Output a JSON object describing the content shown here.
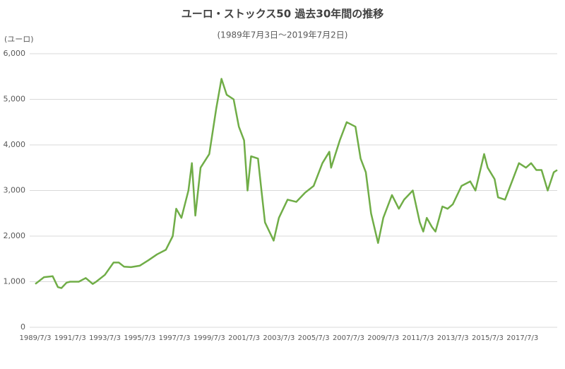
{
  "chart_data": {
    "type": "line",
    "title": "ユーロ・ストックス50 過去30年間の推移",
    "subtitle": "(1989年7月3日～2019年7月2日)",
    "y_label": "(ユーロ)",
    "x": [
      1989.5,
      1990.0,
      1990.5,
      1990.8,
      1991.0,
      1991.3,
      1991.5,
      1992.0,
      1992.4,
      1992.8,
      1993.0,
      1993.5,
      1994.0,
      1994.3,
      1994.6,
      1995.0,
      1995.5,
      1996.0,
      1996.5,
      1997.0,
      1997.4,
      1997.6,
      1997.9,
      1998.3,
      1998.5,
      1998.7,
      1999.0,
      1999.5,
      1999.9,
      2000.2,
      2000.5,
      2000.9,
      2001.2,
      2001.5,
      2001.7,
      2001.9,
      2002.3,
      2002.5,
      2002.7,
      2003.2,
      2003.5,
      2004.0,
      2004.5,
      2005.0,
      2005.5,
      2006.0,
      2006.4,
      2006.5,
      2007.0,
      2007.4,
      2007.9,
      2008.2,
      2008.5,
      2008.8,
      2009.2,
      2009.5,
      2010.0,
      2010.4,
      2010.7,
      2011.2,
      2011.6,
      2011.8,
      2012.0,
      2012.3,
      2012.5,
      2012.9,
      2013.2,
      2013.5,
      2014.0,
      2014.5,
      2014.8,
      2015.3,
      2015.5,
      2015.9,
      2016.1,
      2016.5,
      2016.9,
      2017.3,
      2017.7,
      2018.0,
      2018.3,
      2018.6,
      2018.95,
      2019.3,
      2019.5
    ],
    "series": [
      {
        "name": "ユーロ・ストックス50",
        "color": "#70ad47",
        "values": [
          950,
          1100,
          1120,
          880,
          860,
          980,
          1000,
          1000,
          1080,
          950,
          1000,
          1150,
          1420,
          1420,
          1330,
          1320,
          1350,
          1470,
          1600,
          1700,
          2000,
          2600,
          2400,
          3000,
          3600,
          2450,
          3500,
          3800,
          4800,
          5450,
          5100,
          5000,
          4400,
          4100,
          3000,
          3750,
          3700,
          3000,
          2300,
          1900,
          2400,
          2800,
          2750,
          2950,
          3100,
          3600,
          3850,
          3500,
          4100,
          4500,
          4400,
          3700,
          3400,
          2500,
          1850,
          2400,
          2900,
          2600,
          2800,
          3000,
          2300,
          2100,
          2400,
          2200,
          2100,
          2650,
          2600,
          2700,
          3100,
          3200,
          3000,
          3800,
          3500,
          3250,
          2850,
          2800,
          3200,
          3600,
          3500,
          3600,
          3450,
          3450,
          3000,
          3400,
          3450
        ]
      }
    ],
    "xlim": [
      1989.5,
      2019.5
    ],
    "xticks": [
      {
        "value": 1989.5,
        "label": "1989/7/3"
      },
      {
        "value": 1991.5,
        "label": "1991/7/3"
      },
      {
        "value": 1993.5,
        "label": "1993/7/3"
      },
      {
        "value": 1995.5,
        "label": "1995/7/3"
      },
      {
        "value": 1997.5,
        "label": "1997/7/3"
      },
      {
        "value": 1999.5,
        "label": "1999/7/3"
      },
      {
        "value": 2001.5,
        "label": "2001/7/3"
      },
      {
        "value": 2003.5,
        "label": "2003/7/3"
      },
      {
        "value": 2005.5,
        "label": "2005/7/3"
      },
      {
        "value": 2007.5,
        "label": "2007/7/3"
      },
      {
        "value": 2009.5,
        "label": "2009/7/3"
      },
      {
        "value": 2011.5,
        "label": "2011/7/3"
      },
      {
        "value": 2013.5,
        "label": "2013/7/3"
      },
      {
        "value": 2015.5,
        "label": "2015/7/3"
      },
      {
        "value": 2017.5,
        "label": "2017/7/3"
      }
    ],
    "ylim": [
      0,
      6000
    ],
    "yticks": [
      0,
      {
        "value": 1000,
        "label": "1,000"
      },
      {
        "value": 2000,
        "label": "2,000"
      },
      {
        "value": 3000,
        "label": "3,000"
      },
      {
        "value": 4000,
        "label": "4,000"
      },
      {
        "value": 5000,
        "label": "5,000"
      },
      {
        "value": 6000,
        "label": "6,000"
      }
    ],
    "grid": true
  }
}
